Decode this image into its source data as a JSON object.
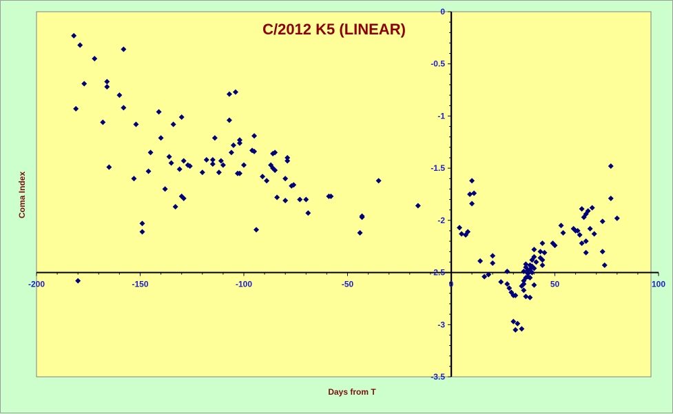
{
  "chart_data": {
    "type": "scatter",
    "title": "C/2012 K5 (LINEAR)",
    "xlabel": "Days from T",
    "ylabel": "Coma Index",
    "xlim": [
      -200,
      100
    ],
    "ylim": [
      -3.5,
      0
    ],
    "xticks": [
      -200,
      -150,
      -100,
      -50,
      0,
      50,
      100
    ],
    "yticks": [
      0,
      -0.5,
      -1,
      -1.5,
      -2,
      -2.5,
      -3,
      -3.5
    ],
    "grid": false,
    "legend": "none",
    "colors": {
      "plot_bg": "#ffff99",
      "outer_bg": "#ccffcc",
      "marker": "#00007a",
      "tick_text": "#1c1ccc",
      "axis_title": "#7a0f0f",
      "title": "#8b0000"
    },
    "points": [
      [
        -182,
        -0.23
      ],
      [
        -179,
        -0.32
      ],
      [
        -177,
        -0.69
      ],
      [
        -172,
        -0.45
      ],
      [
        -168,
        -1.06
      ],
      [
        -166,
        -0.67
      ],
      [
        -166,
        -0.72
      ],
      [
        -165,
        -1.49
      ],
      [
        -181,
        -0.93
      ],
      [
        -180,
        -2.58
      ],
      [
        -160,
        -0.8
      ],
      [
        -158,
        -0.36
      ],
      [
        -158,
        -0.92
      ],
      [
        -152,
        -1.08
      ],
      [
        -153,
        -1.6
      ],
      [
        -149,
        -2.03
      ],
      [
        -149,
        -2.11
      ],
      [
        -146,
        -1.53
      ],
      [
        -145,
        -1.35
      ],
      [
        -141,
        -0.96
      ],
      [
        -140,
        -1.21
      ],
      [
        -138,
        -1.7
      ],
      [
        -136,
        -1.39
      ],
      [
        -135,
        -1.45
      ],
      [
        -134,
        -1.08
      ],
      [
        -133,
        -1.87
      ],
      [
        -131,
        -1.51
      ],
      [
        -130,
        -1.01
      ],
      [
        -130,
        -1.77
      ],
      [
        -129,
        -1.43
      ],
      [
        -129,
        -1.79
      ],
      [
        -127,
        -1.47
      ],
      [
        -126,
        -1.48
      ],
      [
        -120,
        -1.54
      ],
      [
        -118,
        -1.42
      ],
      [
        -115,
        -1.42
      ],
      [
        -115,
        -1.46
      ],
      [
        -114,
        -1.21
      ],
      [
        -112,
        -1.54
      ],
      [
        -111,
        -1.43
      ],
      [
        -110,
        -1.47
      ],
      [
        -107,
        -0.79
      ],
      [
        -107,
        -1.04
      ],
      [
        -106,
        -1.35
      ],
      [
        -105,
        -1.28
      ],
      [
        -104,
        -0.77
      ],
      [
        -103,
        -1.55
      ],
      [
        -102,
        -1.23
      ],
      [
        -102,
        -1.55
      ],
      [
        -102,
        -1.26
      ],
      [
        -100,
        -1.47
      ],
      [
        -96,
        -1.33
      ],
      [
        -95,
        -1.19
      ],
      [
        -95,
        -1.34
      ],
      [
        -94,
        -2.09
      ],
      [
        -91,
        -1.58
      ],
      [
        -89,
        -1.62
      ],
      [
        -87,
        -1.47
      ],
      [
        -86,
        -1.36
      ],
      [
        -86,
        -1.5
      ],
      [
        -85,
        -1.35
      ],
      [
        -85,
        -1.52
      ],
      [
        -84,
        -1.78
      ],
      [
        -80,
        -1.81
      ],
      [
        -80,
        -1.6
      ],
      [
        -79,
        -1.4
      ],
      [
        -79,
        -1.43
      ],
      [
        -77,
        -1.67
      ],
      [
        -76,
        -1.66
      ],
      [
        -73,
        -1.8
      ],
      [
        -70,
        -1.8
      ],
      [
        -69,
        -1.93
      ],
      [
        -59,
        -1.77
      ],
      [
        -58,
        -1.77
      ],
      [
        -44,
        -2.12
      ],
      [
        -43,
        -1.96
      ],
      [
        -43,
        -1.97
      ],
      [
        -35,
        -1.62
      ],
      [
        -16,
        -1.86
      ],
      [
        4,
        -2.07
      ],
      [
        5,
        -2.13
      ],
      [
        7,
        -2.14
      ],
      [
        8,
        -2.11
      ],
      [
        9,
        -1.75
      ],
      [
        10,
        -1.62
      ],
      [
        10,
        -1.84
      ],
      [
        11,
        -1.74
      ],
      [
        14,
        -2.39
      ],
      [
        16,
        -2.54
      ],
      [
        18,
        -2.52
      ],
      [
        20,
        -2.34
      ],
      [
        20,
        -2.41
      ],
      [
        24,
        -2.59
      ],
      [
        27,
        -2.49
      ],
      [
        27,
        -2.61
      ],
      [
        28,
        -2.65
      ],
      [
        29,
        -2.69
      ],
      [
        30,
        -2.72
      ],
      [
        30,
        -2.97
      ],
      [
        31,
        -2.72
      ],
      [
        31,
        -3.05
      ],
      [
        32,
        -2.99
      ],
      [
        34,
        -2.63
      ],
      [
        34,
        -3.04
      ],
      [
        35,
        -2.58
      ],
      [
        35,
        -2.61
      ],
      [
        35,
        -2.49
      ],
      [
        35,
        -2.67
      ],
      [
        36,
        -2.55
      ],
      [
        36,
        -2.73
      ],
      [
        36,
        -2.42
      ],
      [
        36,
        -2.45
      ],
      [
        37,
        -2.48
      ],
      [
        37,
        -2.54
      ],
      [
        37,
        -2.51
      ],
      [
        38,
        -2.55
      ],
      [
        38,
        -2.74
      ],
      [
        38,
        -2.43
      ],
      [
        38,
        -2.47
      ],
      [
        39,
        -2.38
      ],
      [
        39,
        -2.5
      ],
      [
        39,
        -2.44
      ],
      [
        40,
        -2.28
      ],
      [
        40,
        -2.35
      ],
      [
        40,
        -2.46
      ],
      [
        40,
        -2.62
      ],
      [
        41,
        -2.4
      ],
      [
        43,
        -2.3
      ],
      [
        43,
        -2.36
      ],
      [
        44,
        -2.22
      ],
      [
        44,
        -2.38
      ],
      [
        44,
        -2.43
      ],
      [
        45,
        -2.31
      ],
      [
        49,
        -2.22
      ],
      [
        50,
        -2.24
      ],
      [
        53,
        -2.05
      ],
      [
        54,
        -2.12
      ],
      [
        59,
        -2.08
      ],
      [
        60,
        -2.1
      ],
      [
        61,
        -2.1
      ],
      [
        62,
        -2.14
      ],
      [
        63,
        -1.89
      ],
      [
        63,
        -2.22
      ],
      [
        64,
        -1.97
      ],
      [
        65,
        -2.2
      ],
      [
        65,
        -1.94
      ],
      [
        66,
        -1.91
      ],
      [
        67,
        -2.08
      ],
      [
        68,
        -1.88
      ],
      [
        69,
        -2.13
      ],
      [
        65,
        -2.31
      ],
      [
        73,
        -2.01
      ],
      [
        73,
        -2.3
      ],
      [
        74,
        -2.43
      ],
      [
        77,
        -1.48
      ],
      [
        77,
        -1.79
      ],
      [
        80,
        -1.98
      ]
    ]
  }
}
